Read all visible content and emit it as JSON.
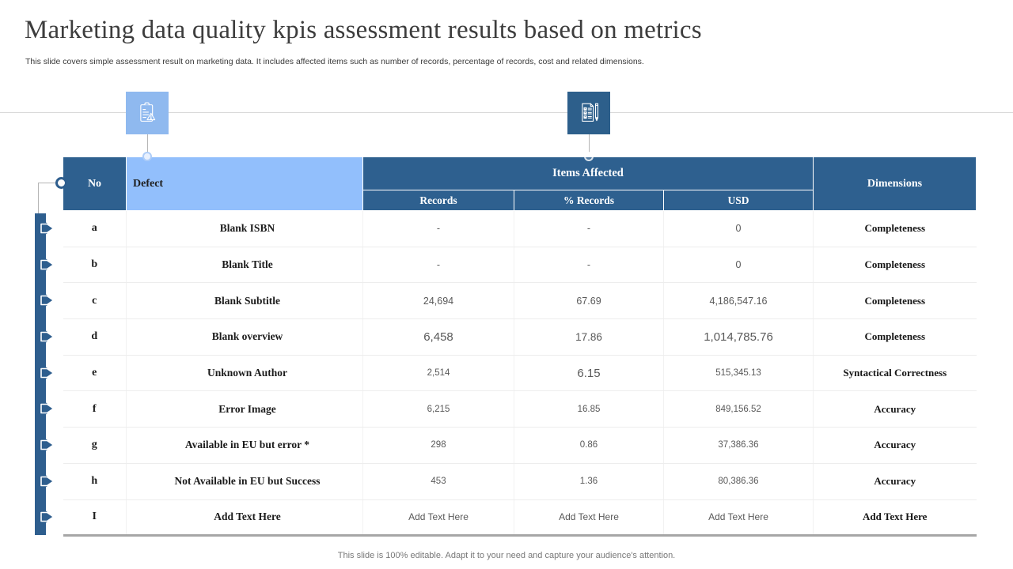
{
  "slide": {
    "title": "Marketing data quality kpis assessment results based on metrics",
    "subtitle": "This slide covers simple assessment result on marketing data. It includes affected items such as number of records, percentage of records, cost and related dimensions.",
    "footer": "This slide is 100% editable. Adapt it to your need and capture your audience's attention."
  },
  "icons": [
    {
      "name": "clipboard-warning-icon",
      "background": "#8FB9EF"
    },
    {
      "name": "checklist-pencil-icon",
      "background": "#2D5F8B"
    }
  ],
  "colors": {
    "header_dark_blue": "#2E608F",
    "header_light_blue": "#92BFFC",
    "accent_bar_blue": "#2E5E8E",
    "value_text_gray": "#595959",
    "table_bottom_border": "#A6A6A6"
  },
  "table": {
    "headers": {
      "no": "No",
      "defect": "Defect",
      "items_affected": "Items Affected",
      "records": "Records",
      "pct_records": "% Records",
      "usd": "USD",
      "dimensions": "Dimensions"
    },
    "rows": [
      {
        "no": "a",
        "defect": "Blank ISBN",
        "records": "-",
        "pct": "-",
        "usd": "0",
        "dimension": "Completeness"
      },
      {
        "no": "b",
        "defect": "Blank Title",
        "records": "-",
        "pct": "-",
        "usd": "0",
        "dimension": "Completeness"
      },
      {
        "no": "c",
        "defect": "Blank Subtitle",
        "records": "24,694",
        "pct": "67.69",
        "usd": "4,186,547.16",
        "dimension": "Completeness"
      },
      {
        "no": "d",
        "defect": "Blank overview",
        "records": "6,458",
        "pct": "17.86",
        "usd": "1,014,785.76",
        "dimension": "Completeness"
      },
      {
        "no": "e",
        "defect": "Unknown Author",
        "records": "2,514",
        "pct": "6.15",
        "usd": "515,345.13",
        "dimension": "Syntactical Correctness"
      },
      {
        "no": "f",
        "defect": "Error Image",
        "records": "6,215",
        "pct": "16.85",
        "usd": "849,156.52",
        "dimension": "Accuracy"
      },
      {
        "no": "g",
        "defect": "Available in EU but error *",
        "records": "298",
        "pct": "0.86",
        "usd": "37,386.36",
        "dimension": "Accuracy"
      },
      {
        "no": "h",
        "defect": "Not Available in EU but Success",
        "records": "453",
        "pct": "1.36",
        "usd": "80,386.36",
        "dimension": "Accuracy"
      },
      {
        "no": "I",
        "defect": "Add Text Here",
        "records": "Add Text Here",
        "pct": "Add Text Here",
        "usd": "Add Text Here",
        "dimension": "Add Text Here"
      }
    ]
  }
}
